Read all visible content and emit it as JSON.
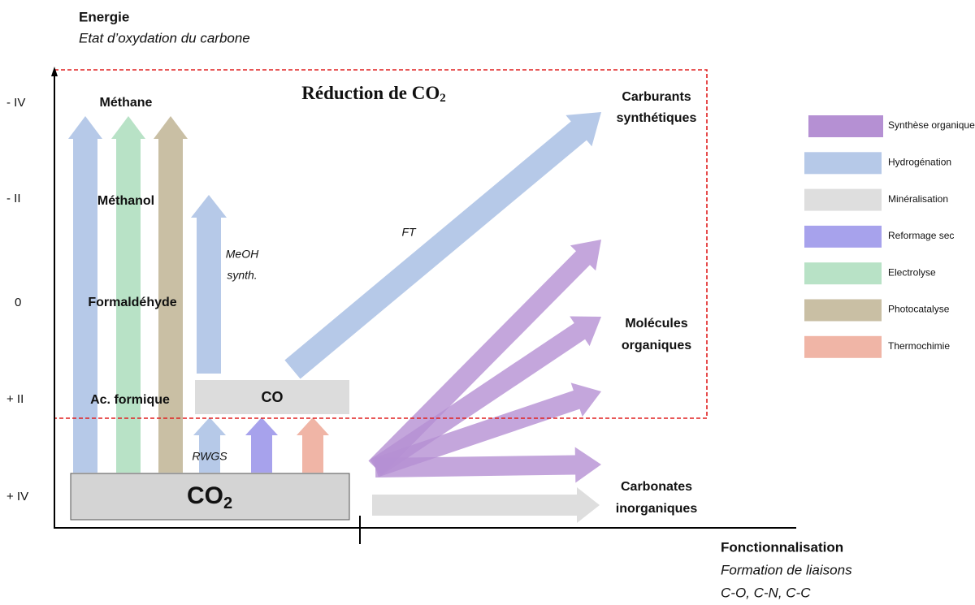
{
  "y_axis": {
    "title": "Energie",
    "subtitle": "Etat d’oxydation du carbone",
    "labels": [
      "- IV",
      "- II",
      "0",
      "+ II",
      "+ IV"
    ]
  },
  "x_axis": {
    "title": "Fonctionnalisation",
    "subtitle_lines": [
      "Formation de liaisons",
      "C-O, C-N, C-C"
    ]
  },
  "region": {
    "title": "Réduction de CO",
    "subscript": "2"
  },
  "species": [
    "Méthane",
    "Méthanol",
    "Formaldéhyde",
    "Ac. formique"
  ],
  "boxes": {
    "co": "CO",
    "co2": {
      "text": "CO",
      "subscript": "2"
    }
  },
  "arrow_labels": {
    "ft": "FT",
    "meoh": [
      "MeOH",
      "synth."
    ],
    "rwgs": "RWGS"
  },
  "products": [
    [
      "Carburants",
      "synthétiques"
    ],
    [
      "Molécules",
      "organiques"
    ],
    [
      "Carbonates",
      "inorganiques"
    ]
  ],
  "legend": [
    {
      "label": "Synthèse organique",
      "color": "#b590d3"
    },
    {
      "label": "Hydrogénation",
      "color": "#b6c9e8"
    },
    {
      "label": "Minéralisation",
      "color": "#dedede"
    },
    {
      "label": "Reformage sec",
      "color": "#a7a2ec"
    },
    {
      "label": "Electrolyse",
      "color": "#b8e2c6"
    },
    {
      "label": "Photocatalyse",
      "color": "#c9bfa4"
    },
    {
      "label": "Thermochimie",
      "color": "#f0b5a6"
    }
  ]
}
